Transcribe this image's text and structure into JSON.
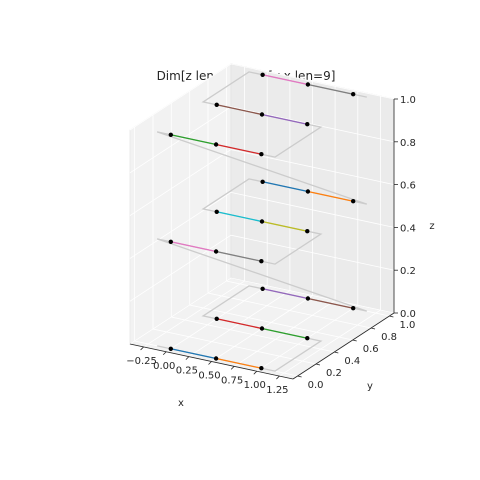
{
  "chart_data": {
    "type": "line3d",
    "title": "Dim[z len=3], Dim[y x len=9]",
    "xlabel": "x",
    "ylabel": "y",
    "zlabel": "z",
    "x_ticks": [
      "−0.25",
      "0.00",
      "0.25",
      "0.50",
      "0.75",
      "1.00",
      "1.25"
    ],
    "y_ticks": [
      "0.0",
      "0.2",
      "0.4",
      "0.6",
      "0.8",
      "1.0"
    ],
    "z_ticks": [
      "0.0",
      "0.2",
      "0.4",
      "0.6",
      "0.8",
      "1.0"
    ],
    "xlim": [
      -0.4,
      1.4
    ],
    "ylim": [
      -0.05,
      1.05
    ],
    "zlim": [
      0.0,
      1.0
    ],
    "z_levels": [
      0.0,
      0.5,
      1.0
    ],
    "y_levels": [
      0.0,
      0.5,
      1.0
    ],
    "x_points": [
      0.0,
      0.5,
      1.0
    ],
    "segment_colors": [
      "#1f77b4",
      "#ff7f0e",
      "#2ca02c",
      "#d62728",
      "#9467bd",
      "#8c564b",
      "#e377c2",
      "#7f7f7f",
      "#bcbd22",
      "#17becf"
    ],
    "path_color": "#cccccc",
    "marker_color": "#000000",
    "grid": true
  }
}
